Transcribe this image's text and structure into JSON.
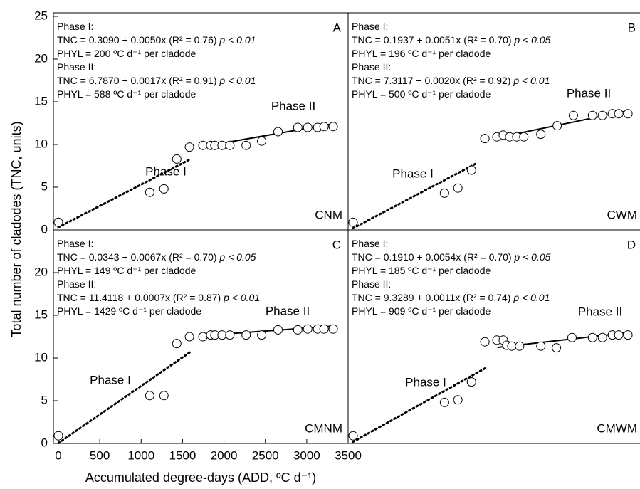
{
  "xlabel": "Accumulated degree-days (ADD, ºC d⁻¹)",
  "ylabel": "Total number of cladodes (TNC, units)",
  "chart_data": [
    {
      "type": "scatter",
      "panel": "A",
      "treatment": "CNM",
      "color": "#000000",
      "xlim": [
        -60,
        3500
      ],
      "ylim": [
        0,
        25
      ],
      "yticks": [
        0,
        5,
        10,
        15,
        20,
        25
      ],
      "notes": [
        {
          "text": "Phase I:"
        },
        {
          "text": "TNC = 0.3090 + 0.0050x (R² = 0.76) ",
          "p": "p < 0.01"
        },
        {
          "text": "PHYL = 200 ºC d⁻¹ per cladode"
        },
        {
          "text": "Phase II:"
        },
        {
          "text": "TNC = 6.7870 + 0.0017x (R² = 0.91) ",
          "p": "p < 0.01"
        },
        {
          "text": "PHYL = 588 ºC d⁻¹ per cladode"
        }
      ],
      "phase_labels": [
        "Phase I",
        "Phase II"
      ],
      "x": [
        0,
        1104,
        1275,
        1430,
        1583,
        1746,
        1840,
        1891,
        1977,
        2071,
        2268,
        2456,
        2653,
        2892,
        3012,
        3132,
        3209,
        3320
      ],
      "values": [
        0.9,
        4.4,
        4.8,
        8.3,
        9.7,
        9.9,
        9.9,
        9.9,
        9.9,
        9.9,
        9.9,
        10.4,
        11.5,
        12.0,
        12.0,
        12.0,
        12.1,
        12.1
      ],
      "fits": [
        {
          "x": [
            0,
            1600
          ],
          "values": [
            0.309,
            8.309
          ],
          "dotted": true
        },
        {
          "x": [
            1750,
            3320
          ],
          "values": [
            9.762,
            12.431
          ],
          "dotted": false
        }
      ]
    },
    {
      "type": "scatter",
      "panel": "B",
      "treatment": "CWM",
      "color": "#000000",
      "xlim": [
        -60,
        3500
      ],
      "ylim": [
        0,
        25
      ],
      "notes": [
        {
          "text": "Phase I:"
        },
        {
          "text": "TNC = 0.1937 + 0.0051x (R² = 0.70) ",
          "p": "p < 0.05"
        },
        {
          "text": "PHYL = 196 ºC d⁻¹ per cladode"
        },
        {
          "text": "Phase II:"
        },
        {
          "text": "TNC = 7.3117 + 0.0020x (R² = 0.92) ",
          "p": "p < 0.01"
        },
        {
          "text": "PHYL = 500 ºC d⁻¹ per cladode"
        }
      ],
      "phase_labels": [
        "Phase I",
        "Phase II"
      ],
      "x": [
        0,
        1104,
        1266,
        1430,
        1592,
        1737,
        1814,
        1891,
        1977,
        2062,
        2268,
        2465,
        2661,
        2892,
        3012,
        3132,
        3209,
        3320
      ],
      "values": [
        0.9,
        4.3,
        4.9,
        7.0,
        10.7,
        10.9,
        11.1,
        10.9,
        10.9,
        10.9,
        11.2,
        12.2,
        13.4,
        13.4,
        13.4,
        13.6,
        13.6,
        13.6
      ],
      "fits": [
        {
          "x": [
            0,
            1500
          ],
          "values": [
            0.194,
            7.844
          ],
          "dotted": true
        },
        {
          "x": [
            1750,
            3320
          ],
          "values": [
            10.812,
            13.952
          ],
          "dotted": false
        }
      ]
    },
    {
      "type": "scatter",
      "panel": "C",
      "treatment": "CMNM",
      "color": "#000000",
      "xlim": [
        -60,
        3500
      ],
      "ylim": [
        0,
        25
      ],
      "yticks": [
        0,
        5,
        10,
        15,
        20
      ],
      "xticks": [
        0,
        500,
        1000,
        1500,
        2000,
        2500,
        3000,
        3500
      ],
      "notes": [
        {
          "text": "Phase I:"
        },
        {
          "text": "TNC = 0.0343 + 0.0067x (R² = 0.70) ",
          "p": "p < 0.05"
        },
        {
          "text": "PHYL = 149 ºC d⁻¹ per cladode"
        },
        {
          "text": "Phase II:"
        },
        {
          "text": "TNC = 11.4118 + 0.0007x (R² = 0.87) ",
          "p": "p < 0.01"
        },
        {
          "text": "PHYL = 1429 ºC d⁻¹ per cladode"
        }
      ],
      "phase_labels": [
        "Phase I",
        "Phase II"
      ],
      "x": [
        0,
        1104,
        1275,
        1430,
        1583,
        1746,
        1840,
        1891,
        1977,
        2071,
        2268,
        2456,
        2653,
        2892,
        3012,
        3132,
        3209,
        3320
      ],
      "values": [
        0.9,
        5.6,
        5.6,
        11.7,
        12.5,
        12.5,
        12.7,
        12.7,
        12.7,
        12.7,
        12.7,
        12.7,
        13.3,
        13.3,
        13.4,
        13.4,
        13.4,
        13.4
      ],
      "fits": [
        {
          "x": [
            0,
            1600
          ],
          "values": [
            0.034,
            10.754
          ],
          "dotted": true
        },
        {
          "x": [
            1750,
            3320
          ],
          "values": [
            12.637,
            13.736
          ],
          "dotted": false
        }
      ]
    },
    {
      "type": "scatter",
      "panel": "D",
      "treatment": "CMWM",
      "color": "#000000",
      "xlim": [
        -60,
        3500
      ],
      "ylim": [
        0,
        25
      ],
      "notes": [
        {
          "text": "Phase I:"
        },
        {
          "text": "TNC = 0.1910 + 0.0054x (R² = 0.70) ",
          "p": "p < 0.05"
        },
        {
          "text": "PHYL = 185 ºC d⁻¹ per cladode"
        },
        {
          "text": "Phase II:"
        },
        {
          "text": "TNC = 9.3289 + 0.0011x (R² = 0.74) ",
          "p": "p < 0.01"
        },
        {
          "text": "PHYL = 909 ºC d⁻¹ per cladode"
        }
      ],
      "phase_labels": [
        "Phase I",
        "Phase II"
      ],
      "x": [
        0,
        1104,
        1266,
        1430,
        1592,
        1737,
        1814,
        1857,
        1917,
        2011,
        2268,
        2456,
        2644,
        2892,
        3012,
        3132,
        3209,
        3320
      ],
      "values": [
        0.9,
        4.8,
        5.1,
        7.2,
        11.9,
        12.1,
        12.1,
        11.5,
        11.4,
        11.4,
        11.4,
        11.2,
        12.4,
        12.4,
        12.4,
        12.7,
        12.7,
        12.7
      ],
      "fits": [
        {
          "x": [
            0,
            1600
          ],
          "values": [
            0.191,
            8.831
          ],
          "dotted": true
        },
        {
          "x": [
            1750,
            3320
          ],
          "values": [
            11.254,
            12.981
          ],
          "dotted": false
        }
      ]
    }
  ]
}
